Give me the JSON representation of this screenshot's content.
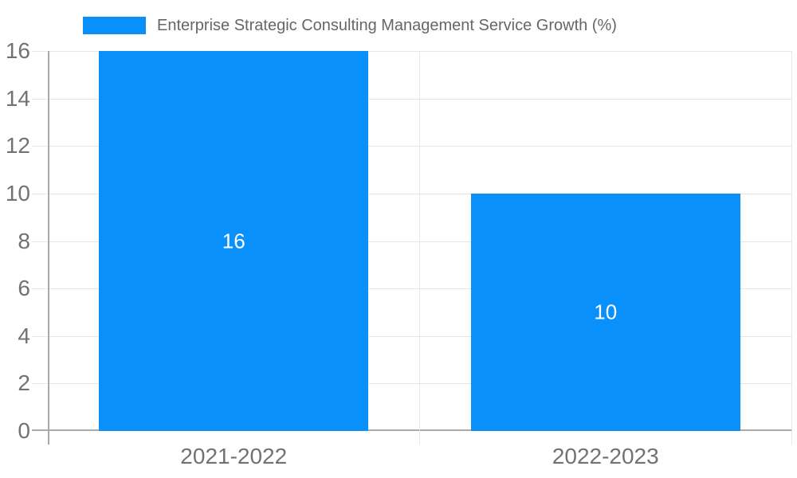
{
  "legend": {
    "label": "Enterprise Strategic Consulting Management Service Growth (%)"
  },
  "chart_data": {
    "type": "bar",
    "title": "Enterprise Strategic Consulting Management Service Growth (%)",
    "categories": [
      "2021-2022",
      "2022-2023"
    ],
    "series": [
      {
        "name": "Enterprise Strategic Consulting Management Service Growth (%)",
        "values": [
          16,
          10
        ]
      }
    ],
    "data_labels": [
      "16",
      "10"
    ],
    "xlabel": "",
    "ylabel": "",
    "ylim": [
      0,
      16
    ],
    "ytick_step": 2,
    "ytick_labels": [
      "0",
      "2",
      "4",
      "6",
      "8",
      "10",
      "12",
      "14",
      "16"
    ],
    "grid": true,
    "legend_position": "top",
    "colors": {
      "bar": "#0990fb",
      "grid": "#e6e6e6",
      "axis_line": "#aaaaaa",
      "tick_label": "#727272",
      "title": "#666666",
      "data_label": "#ffffff",
      "background": "#ffffff"
    }
  }
}
